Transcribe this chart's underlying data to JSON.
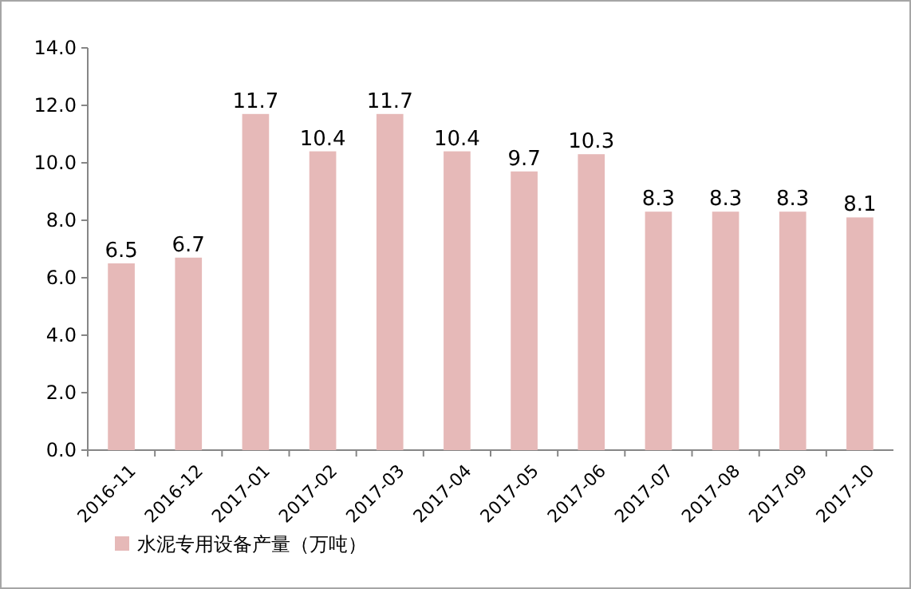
{
  "chart_data": {
    "type": "bar",
    "categories": [
      "2016-11",
      "2016-12",
      "2017-01",
      "2017-02",
      "2017-03",
      "2017-04",
      "2017-05",
      "2017-06",
      "2017-07",
      "2017-08",
      "2017-09",
      "2017-10"
    ],
    "series": [
      {
        "name": "水泥专用设备产量（万吨）",
        "color": "#e6b9b8",
        "values": [
          6.5,
          6.7,
          11.7,
          10.4,
          11.7,
          10.4,
          9.7,
          10.3,
          8.3,
          8.3,
          8.3,
          8.1
        ]
      }
    ],
    "ylim": [
      0,
      14
    ],
    "yticks": [
      {
        "value": 0,
        "label": "0.0"
      },
      {
        "value": 2,
        "label": "2.0"
      },
      {
        "value": 4,
        "label": "4.0"
      },
      {
        "value": 6,
        "label": "6.0"
      },
      {
        "value": 8,
        "label": "8.0"
      },
      {
        "value": 10,
        "label": "10.0"
      },
      {
        "value": 12,
        "label": "12.0"
      },
      {
        "value": 14,
        "label": "14.0"
      }
    ],
    "data_labels": true,
    "legend": "bottom left"
  }
}
